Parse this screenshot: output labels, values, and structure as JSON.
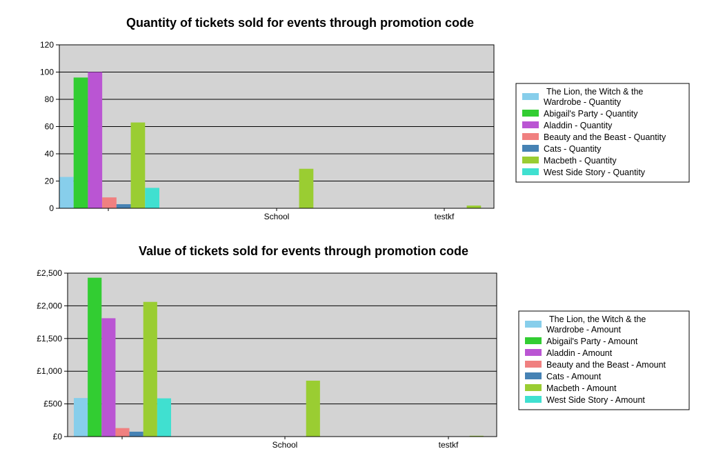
{
  "chart_data": [
    {
      "type": "bar",
      "title": "Quantity of tickets sold for events through promotion code",
      "categories": [
        "",
        "School",
        "testkf"
      ],
      "ylim": [
        0,
        120
      ],
      "yticks": [
        "0",
        "20",
        "40",
        "60",
        "80",
        "100",
        "120"
      ],
      "ytick_values": [
        0,
        20,
        40,
        60,
        80,
        100,
        120
      ],
      "grid": true,
      "legend_position": "right",
      "series": [
        {
          "name": "The Lion, the Witch & the Wardrobe - Quantity",
          "name_lines": [
            "The Lion, the Witch & the",
            "Wardrobe - Quantity"
          ],
          "color": "#87ceeb",
          "values": [
            23,
            0,
            0
          ]
        },
        {
          "name": "Abigail's Party - Quantity",
          "name_lines": [
            "Abigail's Party - Quantity"
          ],
          "color": "#32cd32",
          "values": [
            96,
            0,
            0
          ]
        },
        {
          "name": "Aladdin - Quantity",
          "name_lines": [
            "Aladdin - Quantity"
          ],
          "color": "#ba55d3",
          "values": [
            100,
            0,
            0
          ]
        },
        {
          "name": "Beauty and the Beast - Quantity",
          "name_lines": [
            "Beauty and the Beast - Quantity"
          ],
          "color": "#f08080",
          "values": [
            8,
            0,
            0
          ]
        },
        {
          "name": "Cats - Quantity",
          "name_lines": [
            "Cats - Quantity"
          ],
          "color": "#4682b4",
          "values": [
            3,
            0,
            0
          ]
        },
        {
          "name": "Macbeth - Quantity",
          "name_lines": [
            "Macbeth - Quantity"
          ],
          "color": "#9acd32",
          "values": [
            63,
            29,
            2
          ]
        },
        {
          "name": "West Side Story - Quantity",
          "name_lines": [
            "West Side Story - Quantity"
          ],
          "color": "#40e0d0",
          "values": [
            15,
            0,
            0
          ]
        }
      ]
    },
    {
      "type": "bar",
      "title": "Value of tickets sold for events through promotion code",
      "categories": [
        "",
        "School",
        "testkf"
      ],
      "ylim": [
        0,
        2500
      ],
      "yticks": [
        "£0",
        "£500",
        "£1,000",
        "£1,500",
        "£2,000",
        "£2,500"
      ],
      "ytick_values": [
        0,
        500,
        1000,
        1500,
        2000,
        2500
      ],
      "grid": true,
      "legend_position": "right",
      "series": [
        {
          "name": "The Lion, the Witch & the Wardrobe - Amount",
          "name_lines": [
            "The Lion, the Witch & the",
            "Wardrobe - Amount"
          ],
          "color": "#87ceeb",
          "values": [
            590,
            0,
            0
          ]
        },
        {
          "name": "Abigail's Party - Amount",
          "name_lines": [
            "Abigail's Party - Amount"
          ],
          "color": "#32cd32",
          "values": [
            2430,
            0,
            0
          ]
        },
        {
          "name": "Aladdin - Amount",
          "name_lines": [
            "Aladdin - Amount"
          ],
          "color": "#ba55d3",
          "values": [
            1810,
            0,
            0
          ]
        },
        {
          "name": "Beauty and the Beast - Amount",
          "name_lines": [
            "Beauty and the Beast - Amount"
          ],
          "color": "#f08080",
          "values": [
            130,
            0,
            0
          ]
        },
        {
          "name": "Cats - Amount",
          "name_lines": [
            "Cats - Amount"
          ],
          "color": "#4682b4",
          "values": [
            75,
            0,
            0
          ]
        },
        {
          "name": "Macbeth - Amount",
          "name_lines": [
            "Macbeth - Amount"
          ],
          "color": "#9acd32",
          "values": [
            2060,
            855,
            12
          ]
        },
        {
          "name": "West Side Story - Amount",
          "name_lines": [
            "West Side Story - Amount"
          ],
          "color": "#40e0d0",
          "values": [
            585,
            0,
            0
          ]
        }
      ]
    }
  ]
}
